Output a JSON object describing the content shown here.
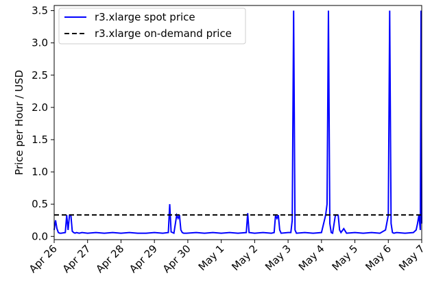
{
  "chart_data": {
    "type": "line",
    "title": "",
    "xlabel": "",
    "ylabel": "Price per Hour / USD",
    "xlim": [
      "2017-04-26",
      "2017-05-07"
    ],
    "ylim": [
      -0.05,
      3.58
    ],
    "xticks": [
      "2017-04-26",
      "2017-04-27",
      "2017-04-28",
      "2017-04-29",
      "2017-04-30",
      "2017-05-01",
      "2017-05-02",
      "2017-05-03",
      "2017-05-04",
      "2017-05-05",
      "2017-05-06",
      "2017-05-07"
    ],
    "xtick_labels": [
      "Apr 26",
      "Apr 27",
      "Apr 28",
      "Apr 29",
      "Apr 30",
      "May 1",
      "May 2",
      "May 3",
      "May 4",
      "May 5",
      "May 6",
      "May 7"
    ],
    "yticks": [
      0.0,
      0.5,
      1.0,
      1.5,
      2.0,
      2.5,
      3.0,
      3.5
    ],
    "ytick_labels": [
      "0.0",
      "0.5",
      "1.0",
      "1.5",
      "2.0",
      "2.5",
      "3.0",
      "3.5"
    ],
    "grid": false,
    "legend_position": "top-left",
    "series": [
      {
        "name": "r3.xlarge spot price",
        "color": "#0000ff",
        "style": "solid",
        "x": [
          "2017-04-26T00:00",
          "2017-04-26T01:00",
          "2017-04-26T02:00",
          "2017-04-26T03:00",
          "2017-04-26T04:00",
          "2017-04-26T05:00",
          "2017-04-26T08:00",
          "2017-04-26T09:00",
          "2017-04-26T10:00",
          "2017-04-26T11:00",
          "2017-04-26T12:00",
          "2017-04-26T13:00",
          "2017-04-26T14:00",
          "2017-04-26T15:00",
          "2017-04-26T16:00",
          "2017-04-26T18:00",
          "2017-04-26T20:00",
          "2017-04-27T00:00",
          "2017-04-27T06:00",
          "2017-04-27T12:00",
          "2017-04-27T18:00",
          "2017-04-28T00:00",
          "2017-04-28T06:00",
          "2017-04-28T12:00",
          "2017-04-28T18:00",
          "2017-04-29T00:00",
          "2017-04-29T06:00",
          "2017-04-29T10:00",
          "2017-04-29T11:00",
          "2017-04-29T12:00",
          "2017-04-29T13:00",
          "2017-04-29T14:00",
          "2017-04-29T16:00",
          "2017-04-29T17:00",
          "2017-04-29T18:00",
          "2017-04-29T19:00",
          "2017-04-29T20:00",
          "2017-04-29T21:00",
          "2017-04-29T23:00",
          "2017-04-30T06:00",
          "2017-04-30T12:00",
          "2017-04-30T18:00",
          "2017-05-01T00:00",
          "2017-05-01T06:00",
          "2017-05-01T12:00",
          "2017-05-01T18:00",
          "2017-05-01T19:00",
          "2017-05-01T20:00",
          "2017-05-02T00:00",
          "2017-05-02T06:00",
          "2017-05-02T12:00",
          "2017-05-02T14:00",
          "2017-05-02T15:00",
          "2017-05-02T16:00",
          "2017-05-02T17:00",
          "2017-05-02T18:00",
          "2017-05-02T19:00",
          "2017-05-03T00:00",
          "2017-05-03T02:00",
          "2017-05-03T03:00",
          "2017-05-03T04:00",
          "2017-05-03T05:00",
          "2017-05-03T06:00",
          "2017-05-03T12:00",
          "2017-05-03T18:00",
          "2017-05-04T00:00",
          "2017-05-04T03:00",
          "2017-05-04T04:00",
          "2017-05-04T05:00",
          "2017-05-04T06:00",
          "2017-05-04T07:00",
          "2017-05-04T08:00",
          "2017-05-04T10:00",
          "2017-05-04T12:00",
          "2017-05-04T13:00",
          "2017-05-04T14:00",
          "2017-05-04T16:00",
          "2017-05-04T18:00",
          "2017-05-05T00:00",
          "2017-05-05T06:00",
          "2017-05-05T12:00",
          "2017-05-05T18:00",
          "2017-05-05T22:00",
          "2017-05-06T00:00",
          "2017-05-06T01:00",
          "2017-05-06T02:00",
          "2017-05-06T03:00",
          "2017-05-06T04:00",
          "2017-05-06T06:00",
          "2017-05-06T12:00",
          "2017-05-06T18:00",
          "2017-05-06T20:00",
          "2017-05-06T21:00",
          "2017-05-06T22:00",
          "2017-05-06T23:00",
          "2017-05-06T23:30",
          "2017-05-07T00:00"
        ],
        "y": [
          0.1,
          0.25,
          0.12,
          0.06,
          0.05,
          0.05,
          0.06,
          0.33,
          0.1,
          0.33,
          0.33,
          0.08,
          0.06,
          0.05,
          0.06,
          0.05,
          0.06,
          0.05,
          0.06,
          0.05,
          0.06,
          0.05,
          0.06,
          0.05,
          0.05,
          0.06,
          0.05,
          0.06,
          0.5,
          0.07,
          0.06,
          0.05,
          0.33,
          0.28,
          0.33,
          0.1,
          0.06,
          0.05,
          0.05,
          0.06,
          0.05,
          0.06,
          0.05,
          0.06,
          0.05,
          0.06,
          0.36,
          0.06,
          0.05,
          0.06,
          0.05,
          0.06,
          0.33,
          0.28,
          0.33,
          0.1,
          0.05,
          0.06,
          0.06,
          0.25,
          3.5,
          0.1,
          0.05,
          0.06,
          0.05,
          0.06,
          0.33,
          0.5,
          3.5,
          0.2,
          0.06,
          0.05,
          0.33,
          0.33,
          0.1,
          0.06,
          0.12,
          0.05,
          0.06,
          0.05,
          0.06,
          0.05,
          0.1,
          0.33,
          3.5,
          0.2,
          0.06,
          0.05,
          0.06,
          0.05,
          0.06,
          0.1,
          0.2,
          0.33,
          0.1,
          3.5,
          0.2
        ]
      },
      {
        "name": "r3.xlarge on-demand price",
        "color": "#000000",
        "style": "dashed",
        "x": [
          "2017-04-26",
          "2017-05-07"
        ],
        "y": [
          0.333,
          0.333
        ]
      }
    ]
  }
}
